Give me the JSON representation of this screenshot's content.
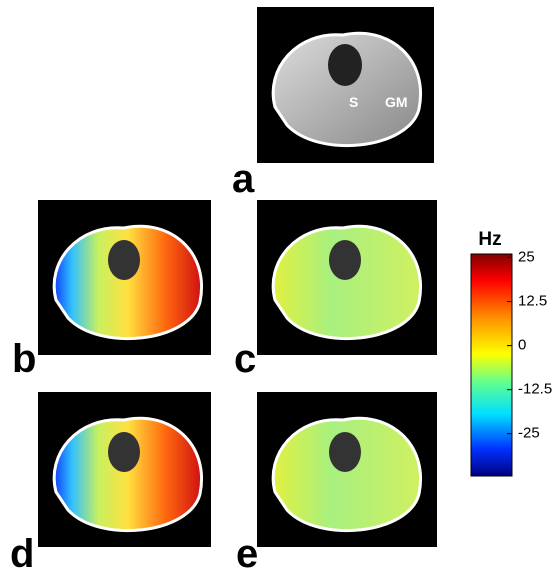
{
  "panels": [
    {
      "label": "a"
    },
    {
      "label": "b"
    },
    {
      "label": "c"
    },
    {
      "label": "d"
    },
    {
      "label": "e"
    }
  ],
  "annotations": {
    "s": "S",
    "gm": "GM"
  },
  "colorbar": {
    "title": "Hz",
    "lim": [
      -37,
      26
    ],
    "ticks": [
      25,
      12.5,
      0,
      -12.5,
      -25
    ]
  }
}
